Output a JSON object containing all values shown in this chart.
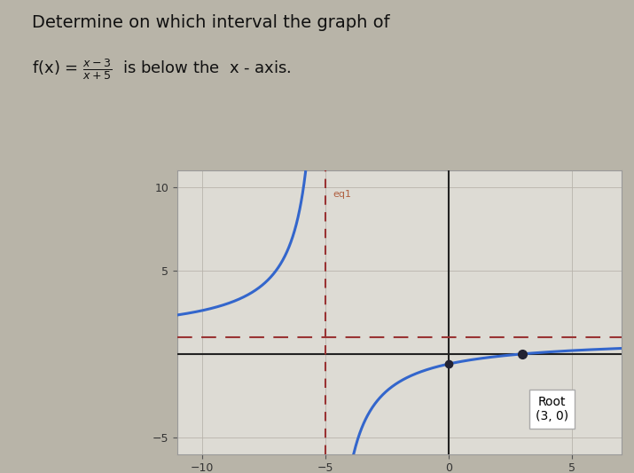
{
  "title_line1": "Determine on which interval the graph of",
  "title_line2_pre": "f(x) = ",
  "title_line2_post": " is below the  x-axis.",
  "xlim": [
    -11,
    7
  ],
  "ylim": [
    -6,
    11
  ],
  "x_ticks": [
    -10,
    -5,
    0,
    5
  ],
  "y_ticks": [
    -5,
    5,
    10
  ],
  "curve_color": "#3366cc",
  "asymptote_color": "#993333",
  "asymptote_x": -5,
  "asymptote_y": 1,
  "root_x": 3,
  "root_y": 0,
  "root_label": "Root\n(3, 0)",
  "bg_color": "#c8c4b8",
  "plot_bg_color": "#dddbd4",
  "grid_color": "#b8b4ac",
  "eq_label": "eq1",
  "fig_bg": "#b8b4a8"
}
